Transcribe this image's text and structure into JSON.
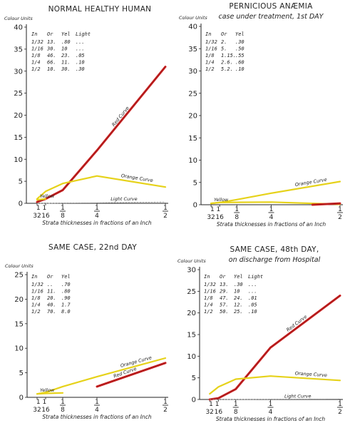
{
  "colors": {
    "red_curve": "#cc1f1f",
    "orange_curve": "#e6d21a",
    "light_curve": "#9a9a9a",
    "axis": "#222222"
  },
  "chart_data": [
    {
      "type": "line",
      "title": "NORMAL HEALTHY HUMAN",
      "subtitle": "",
      "ylabel": "Colour Units",
      "xlabel": "Strata thicknesses in fractions of an Inch",
      "ylim": [
        0,
        40
      ],
      "yticks": [
        "0",
        "5",
        "10",
        "15",
        "20",
        "25",
        "30",
        "35",
        "40"
      ],
      "x_ticks": [
        {
          "x": 0.03125,
          "label": "32"
        },
        {
          "x": 0.0625,
          "label": "16"
        },
        {
          "x": 0.125,
          "label": "1/8"
        },
        {
          "x": 0.25,
          "label": "1/4"
        },
        {
          "x": 0.5,
          "label": "1/2"
        }
      ],
      "x_left_label": "1 1",
      "table_header": [
        "In",
        "Or",
        "Yel",
        "Light"
      ],
      "table_rows": [
        [
          "1/32",
          "13.",
          ".80",
          "..."
        ],
        [
          "1/16",
          "30.",
          "10",
          "..."
        ],
        [
          "1/8",
          "46.",
          "23.",
          ".05"
        ],
        [
          "1/4",
          "66.",
          "11.",
          ".10"
        ],
        [
          "1/2",
          "10.",
          "30.",
          ".30"
        ]
      ],
      "series": [
        {
          "name": "Red Curve",
          "x": [
            0.03125,
            0.0625,
            0.125,
            0.25,
            0.5
          ],
          "y": [
            0.3,
            1.0,
            3.0,
            12.0,
            31.0
          ]
        },
        {
          "name": "Orange Curve",
          "x": [
            0.03125,
            0.0625,
            0.125,
            0.25,
            0.5
          ],
          "y": [
            1.0,
            2.7,
            4.5,
            6.2,
            3.7
          ]
        },
        {
          "name": "Light Curve",
          "x": [
            0.03125,
            0.0625,
            0.125,
            0.25,
            0.5
          ],
          "y": [
            0.0,
            0.0,
            0.05,
            0.1,
            0.3
          ]
        },
        {
          "name": "Yellow",
          "x": [
            0.03125,
            0.0625
          ],
          "y": [
            0.8,
            1.0
          ]
        }
      ],
      "annotations": [
        {
          "text": "Red Curve",
          "series": "Red Curve"
        },
        {
          "text": "Orange Curve",
          "series": "Orange Curve"
        },
        {
          "text": "Light Curve",
          "series": "Light Curve"
        },
        {
          "text": "Yellow",
          "series": "Yellow"
        }
      ]
    },
    {
      "type": "line",
      "title": "PERNICIOUS ANÆMIA",
      "subtitle": "case under treatment, 1st DAY",
      "ylabel": "Colour Units",
      "xlabel": "Strata thicknesses in fractions of an Inch",
      "ylim": [
        0,
        40
      ],
      "yticks": [
        "0",
        "5",
        "10",
        "15",
        "20",
        "25",
        "30",
        "35",
        "40"
      ],
      "x_ticks": [
        {
          "x": 0.03125,
          "label": "32"
        },
        {
          "x": 0.0625,
          "label": "16"
        },
        {
          "x": 0.125,
          "label": "1/8"
        },
        {
          "x": 0.25,
          "label": "1/4"
        },
        {
          "x": 0.5,
          "label": "1/2"
        }
      ],
      "x_left_label": "1 1",
      "table_header": [
        "In",
        "Or",
        "Yel",
        ""
      ],
      "table_rows": [
        [
          "1/32",
          "2.",
          ".30",
          ""
        ],
        [
          "1/16",
          "5.",
          ".50",
          ""
        ],
        [
          "1/8",
          "1.15.",
          ".55",
          ""
        ],
        [
          "1/4",
          "2.6.",
          ".60",
          ""
        ],
        [
          "1/2",
          "5.2.",
          ".10",
          ""
        ]
      ],
      "series": [
        {
          "name": "Orange Curve",
          "x": [
            0.03125,
            0.0625,
            0.125,
            0.25,
            0.5
          ],
          "y": [
            0.3,
            0.5,
            1.15,
            2.6,
            5.2
          ]
        },
        {
          "name": "Yellow",
          "x": [
            0.03125,
            0.0625,
            0.125,
            0.25,
            0.5
          ],
          "y": [
            0.3,
            0.5,
            0.55,
            0.6,
            0.1
          ]
        },
        {
          "name": "Red Curve",
          "x": [
            0.4,
            0.5
          ],
          "y": [
            0.0,
            0.3
          ]
        }
      ],
      "annotations": [
        {
          "text": "Orange Curve",
          "series": "Orange Curve"
        },
        {
          "text": "Yellow",
          "series": "Yellow"
        }
      ]
    },
    {
      "type": "line",
      "title": "SAME CASE, 22nd DAY",
      "subtitle": "",
      "ylabel": "Colour Units",
      "xlabel": "Strata thicknesses in fractions of an Inch",
      "ylim": [
        0,
        25
      ],
      "yticks": [
        "0",
        "5",
        "10",
        "15",
        "20",
        "25"
      ],
      "x_ticks": [
        {
          "x": 0.03125,
          "label": "32"
        },
        {
          "x": 0.0625,
          "label": "16"
        },
        {
          "x": 0.125,
          "label": "1/8"
        },
        {
          "x": 0.25,
          "label": "1/4"
        },
        {
          "x": 0.5,
          "label": "1/2"
        }
      ],
      "x_left_label": "1 1",
      "table_header": [
        "In",
        "Or",
        "Yel",
        ""
      ],
      "table_rows": [
        [
          "1/32",
          "..",
          ".70",
          ""
        ],
        [
          "1/16",
          "11.",
          ".80",
          ""
        ],
        [
          "1/8",
          "20.",
          ".90",
          ""
        ],
        [
          "1/4",
          "40.",
          "1.7",
          ""
        ],
        [
          "1/2",
          "70.",
          "8.0",
          ""
        ]
      ],
      "series": [
        {
          "name": "Orange Curve",
          "x": [
            0.03125,
            0.0625,
            0.125,
            0.25,
            0.5
          ],
          "y": [
            0.7,
            1.0,
            2.2,
            4.2,
            8.0
          ]
        },
        {
          "name": "Red Curve",
          "x": [
            0.25,
            0.5
          ],
          "y": [
            2.2,
            7.0
          ]
        },
        {
          "name": "Yellow",
          "x": [
            0.03125,
            0.0625,
            0.125
          ],
          "y": [
            0.7,
            0.8,
            0.9
          ]
        }
      ],
      "annotations": [
        {
          "text": "Orange Curve",
          "series": "Orange Curve"
        },
        {
          "text": "Red Curve",
          "series": "Red Curve"
        },
        {
          "text": "Yellow",
          "series": "Yellow"
        }
      ]
    },
    {
      "type": "line",
      "title": "SAME CASE, 48th DAY,",
      "subtitle": "on discharge from Hospital",
      "ylabel": "Colour Units",
      "xlabel": "Strata thicknesses in fractions of an Inch",
      "ylim": [
        0,
        30
      ],
      "yticks": [
        "0",
        "5",
        "10",
        "15",
        "20",
        "25",
        "30"
      ],
      "x_ticks": [
        {
          "x": 0.03125,
          "label": "32"
        },
        {
          "x": 0.0625,
          "label": "16"
        },
        {
          "x": 0.125,
          "label": "1/8"
        },
        {
          "x": 0.25,
          "label": "1/4"
        },
        {
          "x": 0.5,
          "label": "1/2"
        }
      ],
      "x_left_label": "1 1",
      "table_header": [
        "In",
        "Or",
        "Yel",
        "Light"
      ],
      "table_rows": [
        [
          "1/32",
          "13.",
          ".30",
          "..."
        ],
        [
          "1/16",
          "29.",
          "10",
          "..."
        ],
        [
          "1/8",
          "47.",
          "24.",
          ".01"
        ],
        [
          "1/4",
          "57.",
          "12.",
          ".05"
        ],
        [
          "1/2",
          "50.",
          "25.",
          ".10"
        ]
      ],
      "series": [
        {
          "name": "Red Curve",
          "x": [
            0.03125,
            0.0625,
            0.125,
            0.25,
            0.5
          ],
          "y": [
            0.0,
            0.3,
            2.4,
            12.0,
            24.0
          ]
        },
        {
          "name": "Orange Curve",
          "x": [
            0.03125,
            0.0625,
            0.125,
            0.25,
            0.5
          ],
          "y": [
            1.3,
            2.9,
            4.7,
            5.4,
            4.4
          ]
        },
        {
          "name": "Light Curve",
          "x": [
            0.03125,
            0.0625,
            0.125,
            0.25,
            0.5
          ],
          "y": [
            0.0,
            0.0,
            0.01,
            0.05,
            0.1
          ]
        }
      ],
      "annotations": [
        {
          "text": "Red Curve",
          "series": "Red Curve"
        },
        {
          "text": "Orange Curve",
          "series": "Orange Curve"
        },
        {
          "text": "Light Curve",
          "series": "Light Curve"
        }
      ]
    }
  ]
}
